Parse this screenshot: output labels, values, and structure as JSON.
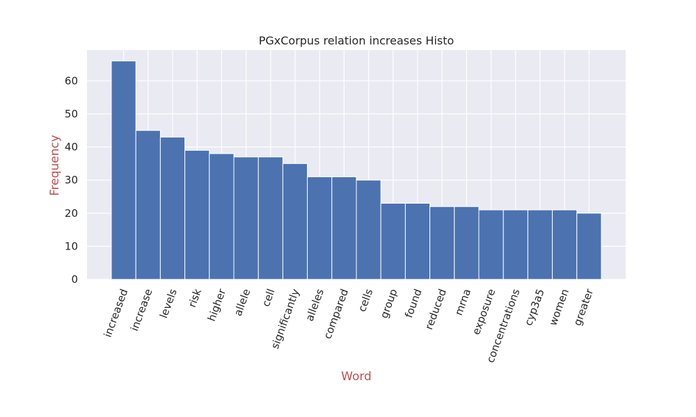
{
  "chart_data": {
    "type": "bar",
    "title": "PGxCorpus relation increases Histo",
    "xlabel": "Word",
    "ylabel": "Frequency",
    "categories": [
      "increased",
      "increase",
      "levels",
      "risk",
      "higher",
      "allele",
      "cell",
      "significantly",
      "alleles",
      "compared",
      "cells",
      "group",
      "found",
      "reduced",
      "mrna",
      "exposure",
      "concentrations",
      "cyp3a5",
      "women",
      "greater"
    ],
    "values": [
      66,
      45,
      43,
      39,
      38,
      37,
      37,
      35,
      31,
      31,
      30,
      23,
      23,
      22,
      22,
      21,
      21,
      21,
      21,
      20
    ],
    "yticks": [
      0,
      10,
      20,
      30,
      40,
      50,
      60
    ],
    "ylim": [
      0,
      69.3
    ],
    "grid": true,
    "colors": {
      "bar": "#4c72b0",
      "background": "#eaeaf2",
      "grid": "#ffffff",
      "axis_label": "#c44e52"
    }
  }
}
